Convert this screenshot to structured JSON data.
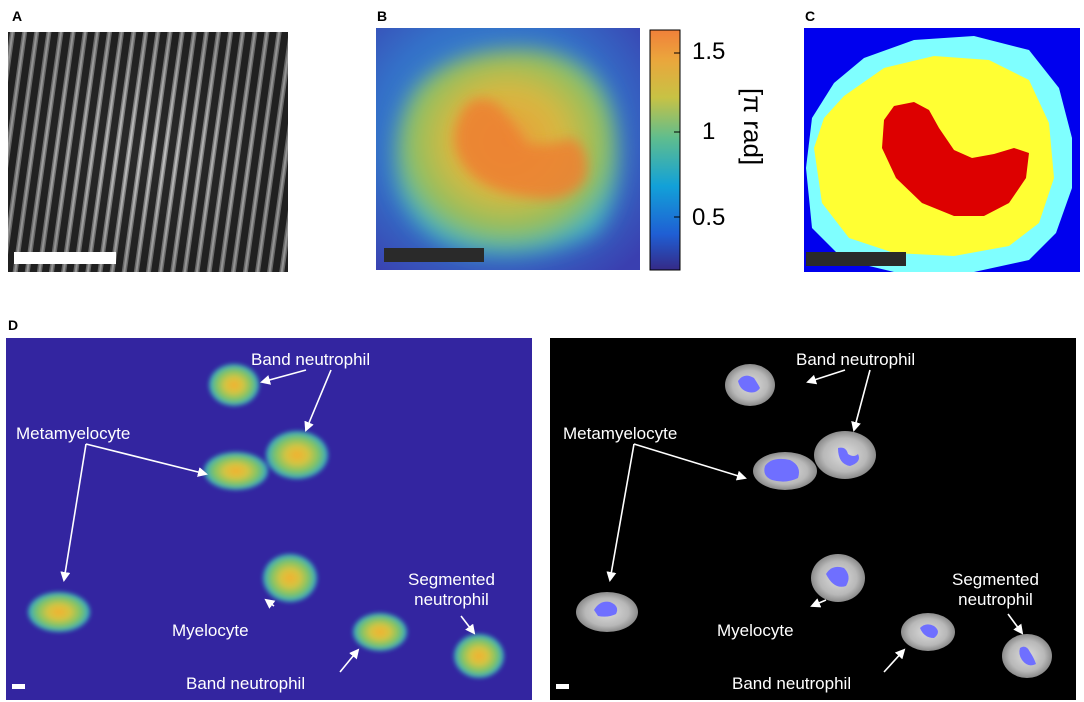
{
  "panels": {
    "a": {
      "label": "A"
    },
    "b": {
      "label": "B"
    },
    "c": {
      "label": "C"
    },
    "d": {
      "label": "D"
    }
  },
  "colorbar": {
    "ticks": [
      "1.5",
      "1",
      "0.5"
    ],
    "unit": "[π rad]"
  },
  "annotations": {
    "band_neutrophil": "Band neutrophil",
    "metamyelocyte": "Metamyelocyte",
    "myelocyte": "Myelocyte",
    "segmented_line1": "Segmented",
    "segmented_line2": "neutrophil"
  },
  "colors": {
    "phase_background": "#3325a0",
    "nucleus_red": "#dd0000",
    "cytoplasm_yellow": "#ffff33",
    "cell_edge_cyan": "#7fffff",
    "mask_background": "#0000ee",
    "nucleus_blue": "#6f6fff"
  }
}
